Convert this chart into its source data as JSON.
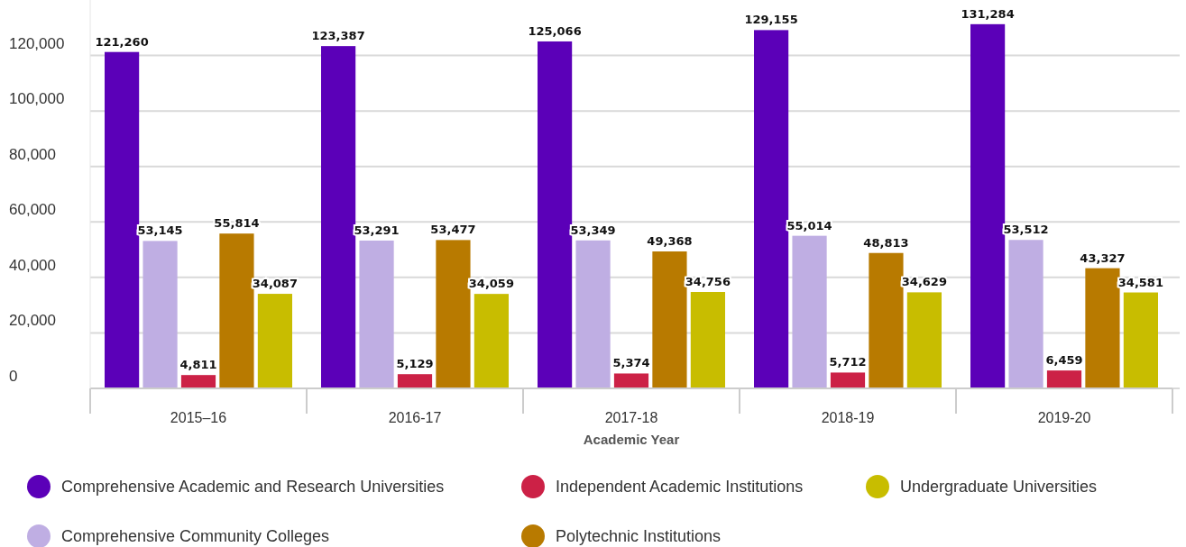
{
  "chart_data": {
    "type": "bar",
    "xlabel": "Academic Year",
    "categories": [
      "2015–16",
      "2016-17",
      "2017-18",
      "2018-19",
      "2019-20"
    ],
    "series": [
      {
        "name": "Comprehensive Academic and Research Universities",
        "color": "#5b00b8",
        "values": [
          121260,
          123387,
          125066,
          129155,
          131284
        ],
        "value_labels": [
          "121,260",
          "123,387",
          "125,066",
          "129,155",
          "131,284"
        ]
      },
      {
        "name": "Comprehensive Community Colleges",
        "color": "#bfaee3",
        "values": [
          53145,
          53291,
          53349,
          55014,
          53512
        ],
        "value_labels": [
          "53,145",
          "53,291",
          "53,349",
          "55,014",
          "53,512"
        ]
      },
      {
        "name": "Independent Academic Institutions",
        "color": "#cc2146",
        "values": [
          4811,
          5129,
          5374,
          5712,
          6459
        ],
        "value_labels": [
          "4,811",
          "5,129",
          "5,374",
          "5,712",
          "6,459"
        ]
      },
      {
        "name": "Polytechnic Institutions",
        "color": "#b87a00",
        "values": [
          55814,
          53477,
          49368,
          48813,
          43327
        ],
        "value_labels": [
          "55,814",
          "53,477",
          "49,368",
          "48,813",
          "43,327"
        ]
      },
      {
        "name": "Undergraduate Universities",
        "color": "#c8bd00",
        "values": [
          34087,
          34059,
          34756,
          34629,
          34581
        ],
        "value_labels": [
          "34,087",
          "34,059",
          "34,756",
          "34,629",
          "34,581"
        ]
      }
    ],
    "ylim": [
      0,
      140000
    ],
    "yticks": [
      {
        "value": 0,
        "label": "0"
      },
      {
        "value": 20000,
        "label": "20,000"
      },
      {
        "value": 40000,
        "label": "40,000"
      },
      {
        "value": 60000,
        "label": "60,000"
      },
      {
        "value": 80000,
        "label": "80,000"
      },
      {
        "value": 100000,
        "label": "100,000"
      },
      {
        "value": 120000,
        "label": "120,000"
      }
    ],
    "grid": "y",
    "legend": "bottom"
  }
}
